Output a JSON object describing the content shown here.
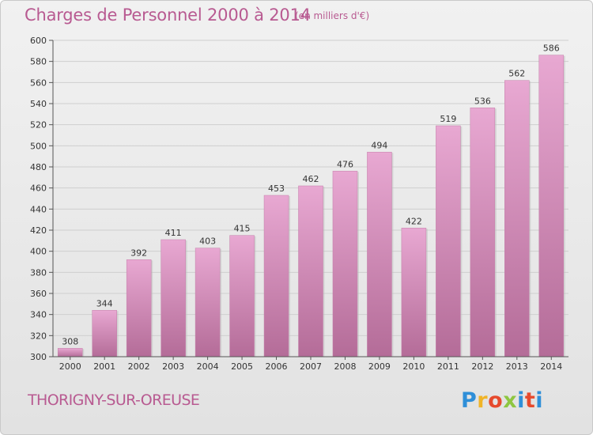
{
  "header": {
    "title": "Charges de Personnel 2000 à 2014",
    "subtitle": "(en milliers d'€)"
  },
  "footer": {
    "town": "THORIGNY-SUR-OREUSE",
    "brand": "Proxiti"
  },
  "colors": {
    "bar_top": "#e8a8d2",
    "bar_bottom": "#b46c98",
    "title": "#b85a91"
  },
  "chart_data": {
    "type": "bar",
    "title": "Charges de Personnel 2000 à 2014",
    "subtitle": "(en milliers d'€)",
    "xlabel": "",
    "ylabel": "",
    "categories": [
      "2000",
      "2001",
      "2002",
      "2003",
      "2004",
      "2005",
      "2006",
      "2007",
      "2008",
      "2009",
      "2010",
      "2011",
      "2012",
      "2013",
      "2014"
    ],
    "values": [
      308,
      344,
      392,
      411,
      403,
      415,
      453,
      462,
      476,
      494,
      422,
      519,
      536,
      562,
      586
    ],
    "ylim": [
      300,
      600
    ],
    "yticks": [
      300,
      320,
      340,
      360,
      380,
      400,
      420,
      440,
      460,
      480,
      500,
      520,
      540,
      560,
      580,
      600
    ],
    "grid": true
  }
}
